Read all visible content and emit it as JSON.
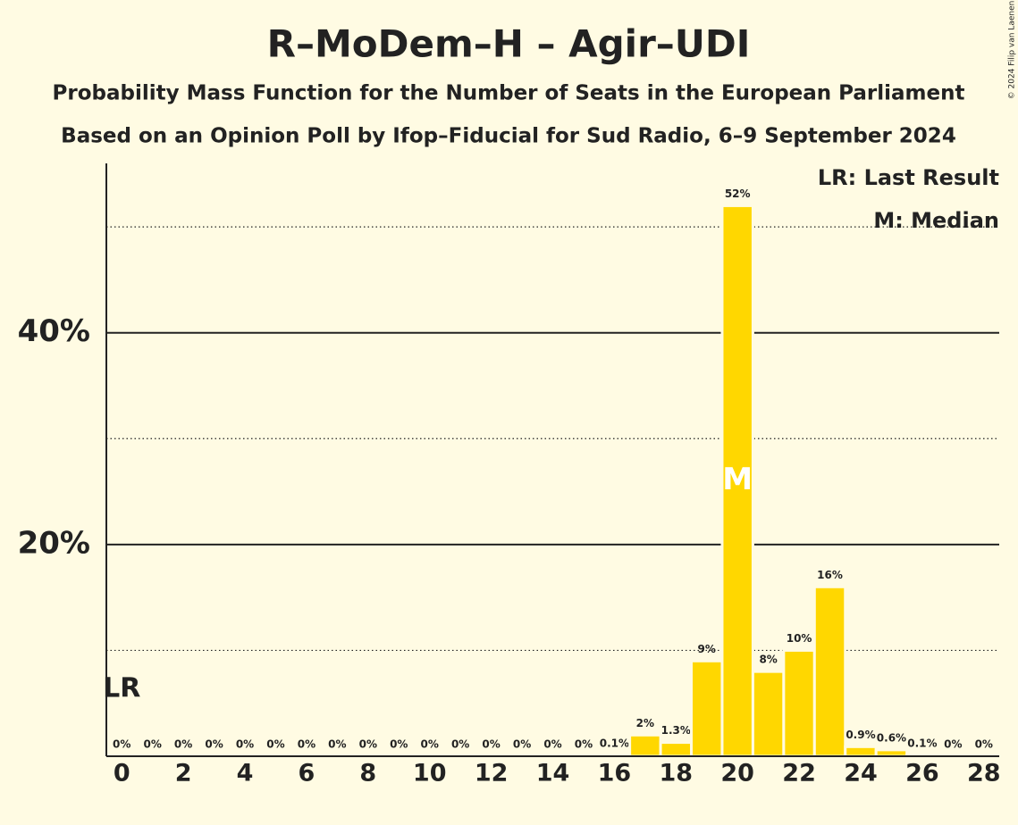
{
  "chart_data": {
    "type": "bar",
    "title": "R–MoDem–H – Agir–UDI",
    "subtitle": "Probability Mass Function for the Number of Seats in the European Parliament",
    "subtitle2": "Based on an Opinion Poll by Ifop–Fiducial for Sud Radio, 6–9 September 2024",
    "copyright": "© 2024 Filip van Laenen",
    "x": [
      0,
      1,
      2,
      3,
      4,
      5,
      6,
      7,
      8,
      9,
      10,
      11,
      12,
      13,
      14,
      15,
      16,
      17,
      18,
      19,
      20,
      21,
      22,
      23,
      24,
      25,
      26,
      27,
      28
    ],
    "values": [
      0,
      0,
      0,
      0,
      0,
      0,
      0,
      0,
      0,
      0,
      0,
      0,
      0,
      0,
      0,
      0,
      0.1,
      2,
      1.3,
      9,
      52,
      8,
      10,
      16,
      0.9,
      0.6,
      0.1,
      0,
      0
    ],
    "value_labels": [
      "0%",
      "0%",
      "0%",
      "0%",
      "0%",
      "0%",
      "0%",
      "0%",
      "0%",
      "0%",
      "0%",
      "0%",
      "0%",
      "0%",
      "0%",
      "0%",
      "0.1%",
      "2%",
      "1.3%",
      "9%",
      "52%",
      "8%",
      "10%",
      "16%",
      "0.9%",
      "0.6%",
      "0.1%",
      "0%",
      "0%"
    ],
    "color": "#ffd700",
    "xlim": [
      -0.5,
      28.5
    ],
    "xticks": [
      0,
      2,
      4,
      6,
      8,
      10,
      12,
      14,
      16,
      18,
      20,
      22,
      24,
      26,
      28
    ],
    "ylim": [
      0,
      56
    ],
    "yticks": [
      {
        "value": 20,
        "label": "20%"
      },
      {
        "value": 40,
        "label": "40%"
      }
    ],
    "minor_grid": [
      10,
      30,
      50
    ],
    "last_result": {
      "x": 0,
      "label": "LR"
    },
    "median": {
      "x": 20,
      "label": "M"
    },
    "legend": [
      "LR: Last Result",
      "M: Median"
    ]
  }
}
